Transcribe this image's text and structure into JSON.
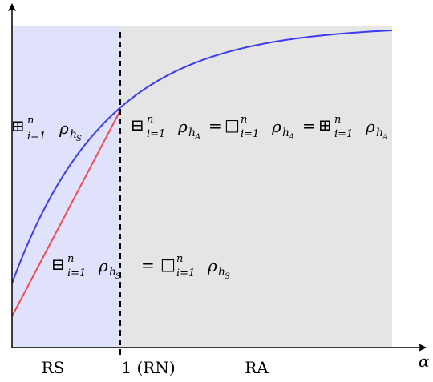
{
  "colors": {
    "rs_region": "#e0e2fb",
    "ra_region": "#e5e5e5",
    "upper_curve": "#3b3bf0",
    "lower_line": "#ee4b55",
    "axis": "#000000"
  },
  "axes": {
    "x_label": "α",
    "y_label": ""
  },
  "regions": {
    "rs": "RS",
    "rn": "1 (RN)",
    "ra": "RA"
  },
  "annotations": {
    "upper_left": {
      "operator": "⊞",
      "sup": "n",
      "sub": "i=1",
      "rho": "ρ",
      "h": "h",
      "hsub": "S"
    },
    "upper_right": {
      "op1": "⊟",
      "op2": "□",
      "op3": "⊞",
      "sup": "n",
      "sub": "i=1",
      "rho": "ρ",
      "h": "h",
      "hsub": "A",
      "eq": "="
    },
    "lower_middle": {
      "op1": "⊟",
      "op2": "□",
      "sup": "n",
      "sub": "i=1",
      "rho": "ρ",
      "h": "h",
      "hsub": "S",
      "eq": "="
    }
  }
}
